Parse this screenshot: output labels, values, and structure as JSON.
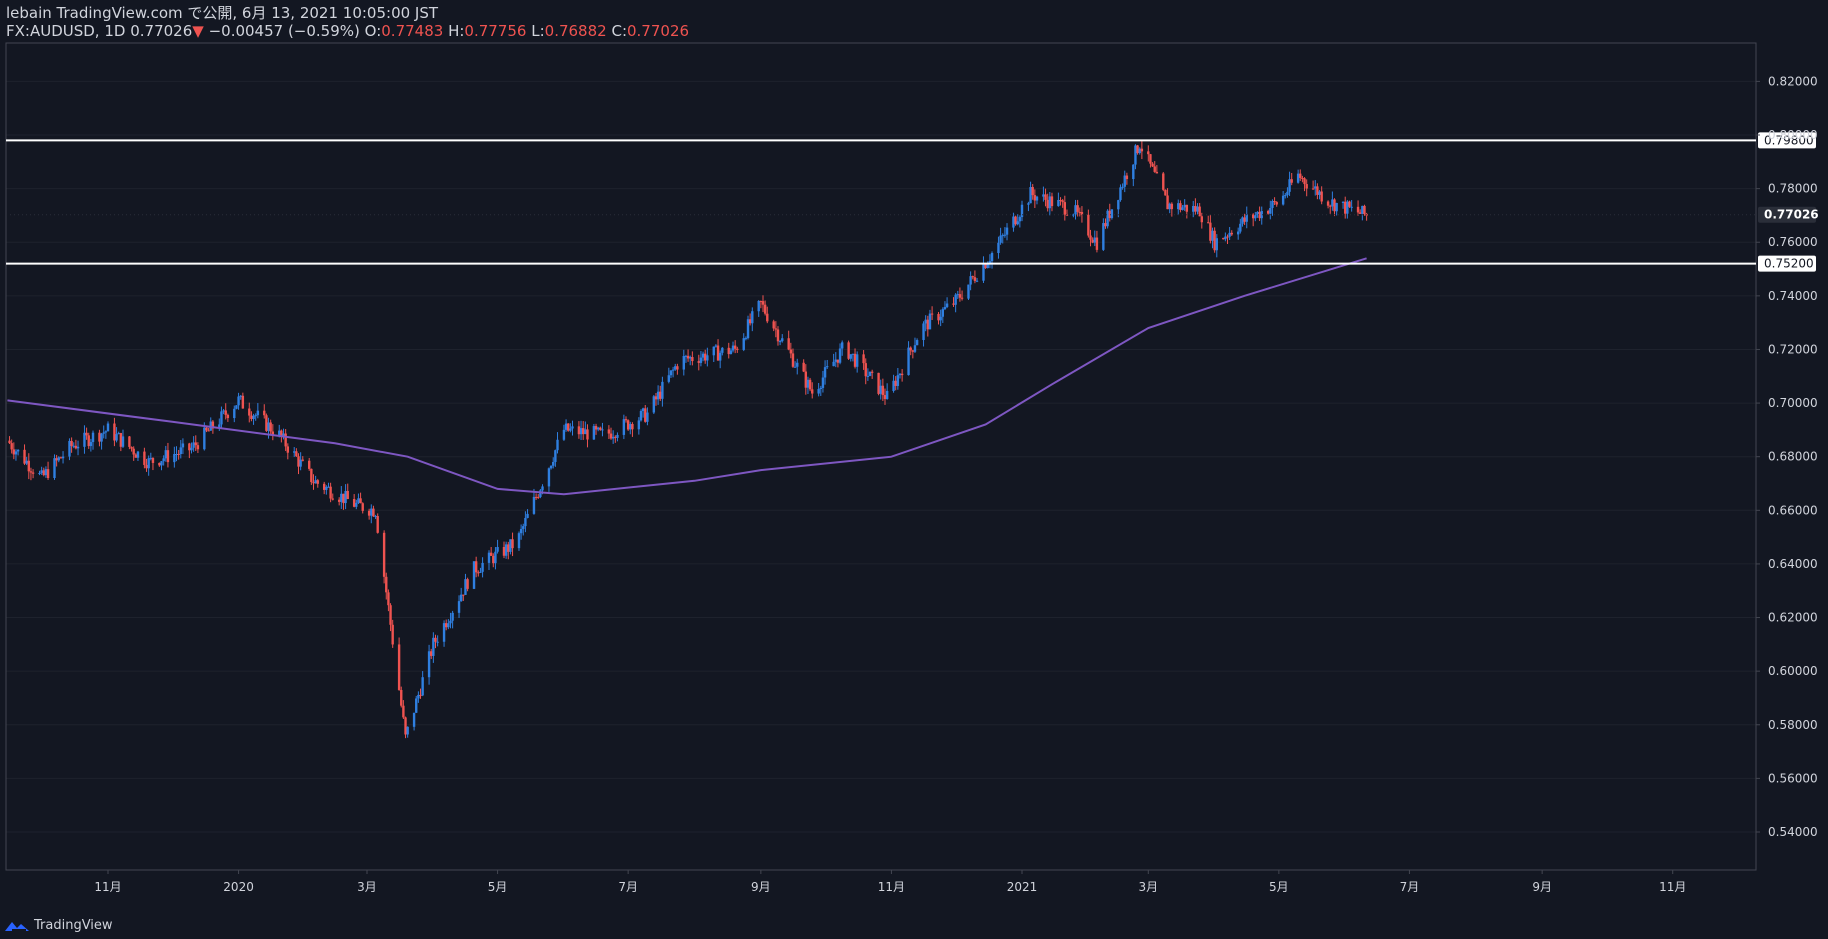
{
  "header": {
    "published_line": "lebain TradingView.com で公開, 6月 13, 2021 10:05:00 JST",
    "symbol": "FX:AUDUSD, 1D",
    "last": "0.77026",
    "arrow": "▼",
    "change": "−0.00457 (−0.59%)",
    "o_label": "O:",
    "o_value": "0.77483",
    "h_label": "H:",
    "h_value": "0.77756",
    "l_label": "L:",
    "l_value": "0.76882",
    "c_label": "C:",
    "c_value": "0.77026"
  },
  "footer": {
    "brand": "TradingView"
  },
  "colors": {
    "background": "#131722",
    "up": "#2f7fe0",
    "down": "#ef5350",
    "ma": "#7e57c2",
    "level": "#ffffff"
  },
  "chart_data": {
    "type": "candlestick",
    "ylim": [
      0.53,
      0.83
    ],
    "y_ticks": [
      "0.82000",
      "0.80000",
      "0.78000",
      "0.76000",
      "0.74000",
      "0.72000",
      "0.70000",
      "0.68000",
      "0.66000",
      "0.64000",
      "0.62000",
      "0.60000",
      "0.58000",
      "0.56000",
      "0.54000"
    ],
    "x_ticks": [
      "11月",
      "2020",
      "3月",
      "5月",
      "7月",
      "9月",
      "11月",
      "2021",
      "3月",
      "5月",
      "7月",
      "9月",
      "11月"
    ],
    "horizontal_levels": [
      "0.79800",
      "0.75200"
    ],
    "last_price_label": "0.77026",
    "price_path": [
      {
        "d": "2019-09-15",
        "p": 0.686
      },
      {
        "d": "2019-10-01",
        "p": 0.672
      },
      {
        "d": "2019-10-15",
        "p": 0.684
      },
      {
        "d": "2019-11-01",
        "p": 0.69
      },
      {
        "d": "2019-11-20",
        "p": 0.678
      },
      {
        "d": "2019-12-10",
        "p": 0.683
      },
      {
        "d": "2020-01-01",
        "p": 0.701
      },
      {
        "d": "2020-01-20",
        "p": 0.688
      },
      {
        "d": "2020-02-05",
        "p": 0.671
      },
      {
        "d": "2020-02-25",
        "p": 0.662
      },
      {
        "d": "2020-03-05",
        "p": 0.66
      },
      {
        "d": "2020-03-19",
        "p": 0.575
      },
      {
        "d": "2020-04-01",
        "p": 0.61
      },
      {
        "d": "2020-04-20",
        "p": 0.638
      },
      {
        "d": "2020-05-10",
        "p": 0.648
      },
      {
        "d": "2020-06-01",
        "p": 0.69
      },
      {
        "d": "2020-06-20",
        "p": 0.688
      },
      {
        "d": "2020-07-10",
        "p": 0.696
      },
      {
        "d": "2020-07-25",
        "p": 0.716
      },
      {
        "d": "2020-08-20",
        "p": 0.72
      },
      {
        "d": "2020-09-01",
        "p": 0.737
      },
      {
        "d": "2020-09-25",
        "p": 0.704
      },
      {
        "d": "2020-10-10",
        "p": 0.721
      },
      {
        "d": "2020-10-30",
        "p": 0.702
      },
      {
        "d": "2020-11-15",
        "p": 0.728
      },
      {
        "d": "2020-12-01",
        "p": 0.738
      },
      {
        "d": "2020-12-20",
        "p": 0.758
      },
      {
        "d": "2021-01-05",
        "p": 0.778
      },
      {
        "d": "2021-01-25",
        "p": 0.772
      },
      {
        "d": "2021-02-05",
        "p": 0.76
      },
      {
        "d": "2021-02-25",
        "p": 0.797
      },
      {
        "d": "2021-03-10",
        "p": 0.774
      },
      {
        "d": "2021-03-25",
        "p": 0.772
      },
      {
        "d": "2021-04-01",
        "p": 0.76
      },
      {
        "d": "2021-04-15",
        "p": 0.768
      },
      {
        "d": "2021-05-01",
        "p": 0.775
      },
      {
        "d": "2021-05-10",
        "p": 0.785
      },
      {
        "d": "2021-05-25",
        "p": 0.775
      },
      {
        "d": "2021-06-11",
        "p": 0.77
      }
    ],
    "moving_average": [
      {
        "d": "2019-09-15",
        "p": 0.701
      },
      {
        "d": "2019-12-01",
        "p": 0.693
      },
      {
        "d": "2020-02-15",
        "p": 0.685
      },
      {
        "d": "2020-03-20",
        "p": 0.68
      },
      {
        "d": "2020-05-01",
        "p": 0.668
      },
      {
        "d": "2020-06-01",
        "p": 0.666
      },
      {
        "d": "2020-08-01",
        "p": 0.671
      },
      {
        "d": "2020-09-01",
        "p": 0.675
      },
      {
        "d": "2020-11-01",
        "p": 0.68
      },
      {
        "d": "2020-12-15",
        "p": 0.692
      },
      {
        "d": "2021-01-15",
        "p": 0.707
      },
      {
        "d": "2021-03-01",
        "p": 0.728
      },
      {
        "d": "2021-04-15",
        "p": 0.74
      },
      {
        "d": "2021-06-11",
        "p": 0.754
      }
    ]
  }
}
